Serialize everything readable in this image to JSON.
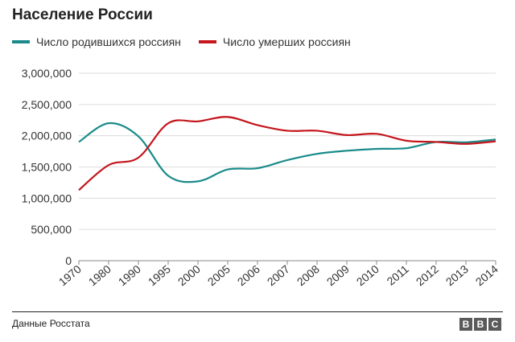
{
  "header": {
    "title": "Население России"
  },
  "legend": [
    {
      "label": "Число родившихся россиян",
      "color": "#1a8b8a"
    },
    {
      "label": "Число умерших россиян",
      "color": "#c4161c"
    }
  ],
  "chart_data": {
    "type": "line",
    "title": "Население России",
    "xlabel": "",
    "ylabel": "",
    "categories": [
      "1970",
      "1980",
      "1990",
      "1995",
      "2000",
      "2005",
      "2006",
      "2007",
      "2008",
      "2009",
      "2010",
      "2011",
      "2012",
      "2013",
      "2014"
    ],
    "ylim": [
      0,
      3000000
    ],
    "yticks": [
      0,
      500000,
      1000000,
      1500000,
      2000000,
      2500000,
      3000000
    ],
    "ytick_labels": [
      "0",
      "500,000",
      "1,000,000",
      "1,500,000",
      "2,000,000",
      "2,500,000",
      "3,000,000"
    ],
    "grid": true,
    "series": [
      {
        "name": "Число родившихся россиян",
        "color": "#1a8b8a",
        "values": [
          1900000,
          2200000,
          1990000,
          1360000,
          1270000,
          1460000,
          1480000,
          1610000,
          1710000,
          1760000,
          1790000,
          1800000,
          1900000,
          1895000,
          1940000
        ]
      },
      {
        "name": "Число умерших россиян",
        "color": "#c4161c",
        "values": [
          1130000,
          1530000,
          1650000,
          2200000,
          2230000,
          2300000,
          2170000,
          2080000,
          2080000,
          2010000,
          2030000,
          1920000,
          1900000,
          1870000,
          1910000
        ]
      }
    ]
  },
  "footer": {
    "source": "Данные Росстата",
    "logo_letters": [
      "B",
      "B",
      "C"
    ]
  }
}
